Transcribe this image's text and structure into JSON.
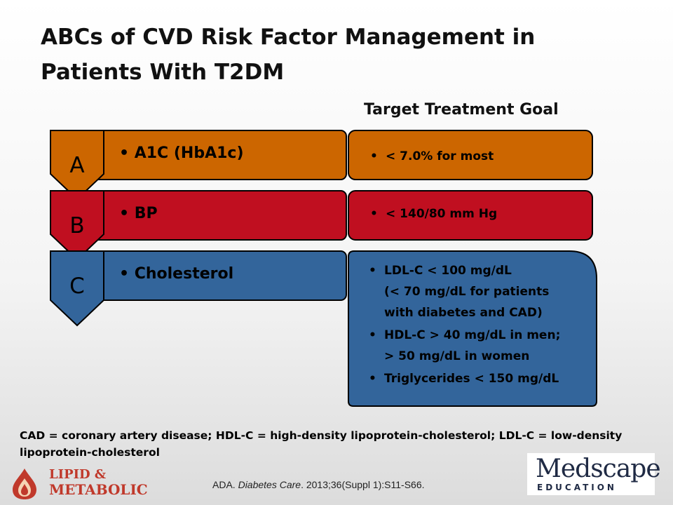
{
  "slide": {
    "title_line1": "ABCs of CVD Risk Factor Management in",
    "title_line2": "Patients With T2DM",
    "target_header": "Target Treatment Goal"
  },
  "rows": [
    {
      "letter": "A",
      "label": "• A1C (HbA1c)",
      "color": "#cc6600",
      "goals": [
        "< 7.0% for most"
      ]
    },
    {
      "letter": "B",
      "label": "• BP",
      "color": "#c00f20",
      "goals": [
        "< 140/80 mm Hg"
      ]
    },
    {
      "letter": "C",
      "label": "• Cholesterol",
      "color": "#33659b",
      "goals": [
        "LDL-C < 100 mg/dL",
        "(< 70 mg/dL for patients",
        "with diabetes and CAD)",
        "HDL-C > 40 mg/dL in men;",
        "> 50 mg/dL in women",
        "Triglycerides < 150 mg/dL"
      ]
    }
  ],
  "footnote": "CAD = coronary artery disease; HDL-C = high-density lipoprotein-cholesterol; LDL-C = low-density lipoprotein-cholesterol",
  "citation": {
    "prefix": "ADA. ",
    "journal": "Diabetes Care",
    "suffix": ". 2013;36(Suppl 1):S11-S66."
  },
  "logos": {
    "lipid_line1": "LIPID &",
    "lipid_line2": "METABOLIC",
    "medscape": "Medscape",
    "medscape_sub": "EDUCATION"
  }
}
